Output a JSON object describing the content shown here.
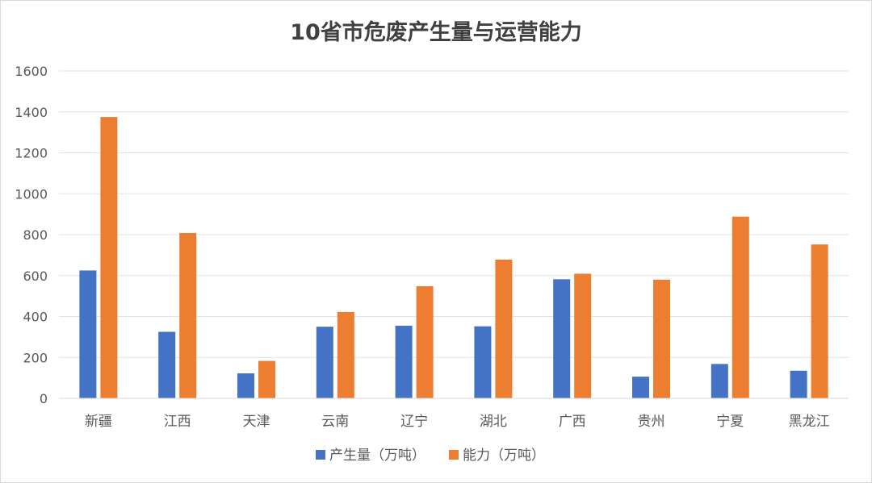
{
  "chart_data": {
    "type": "bar",
    "title": "10省市危废产生量与运营能力",
    "categories": [
      "新疆",
      "江西",
      "天津",
      "云南",
      "辽宁",
      "湖北",
      "广西",
      "贵州",
      "宁夏",
      "黑龙江"
    ],
    "series": [
      {
        "name": "产生量（万吨）",
        "color": "#4472C4",
        "values": [
          625,
          325,
          122,
          350,
          355,
          352,
          582,
          106,
          168,
          135
        ]
      },
      {
        "name": "能力（万吨）",
        "color": "#ED7D31",
        "values": [
          1375,
          808,
          183,
          422,
          548,
          678,
          609,
          580,
          888,
          752
        ]
      }
    ],
    "ylim": [
      0,
      1600
    ],
    "yticks": [
      "0",
      "200",
      "400",
      "600",
      "800",
      "1000",
      "1200",
      "1400",
      "1600"
    ],
    "grid": true,
    "legend_position": "bottom"
  }
}
